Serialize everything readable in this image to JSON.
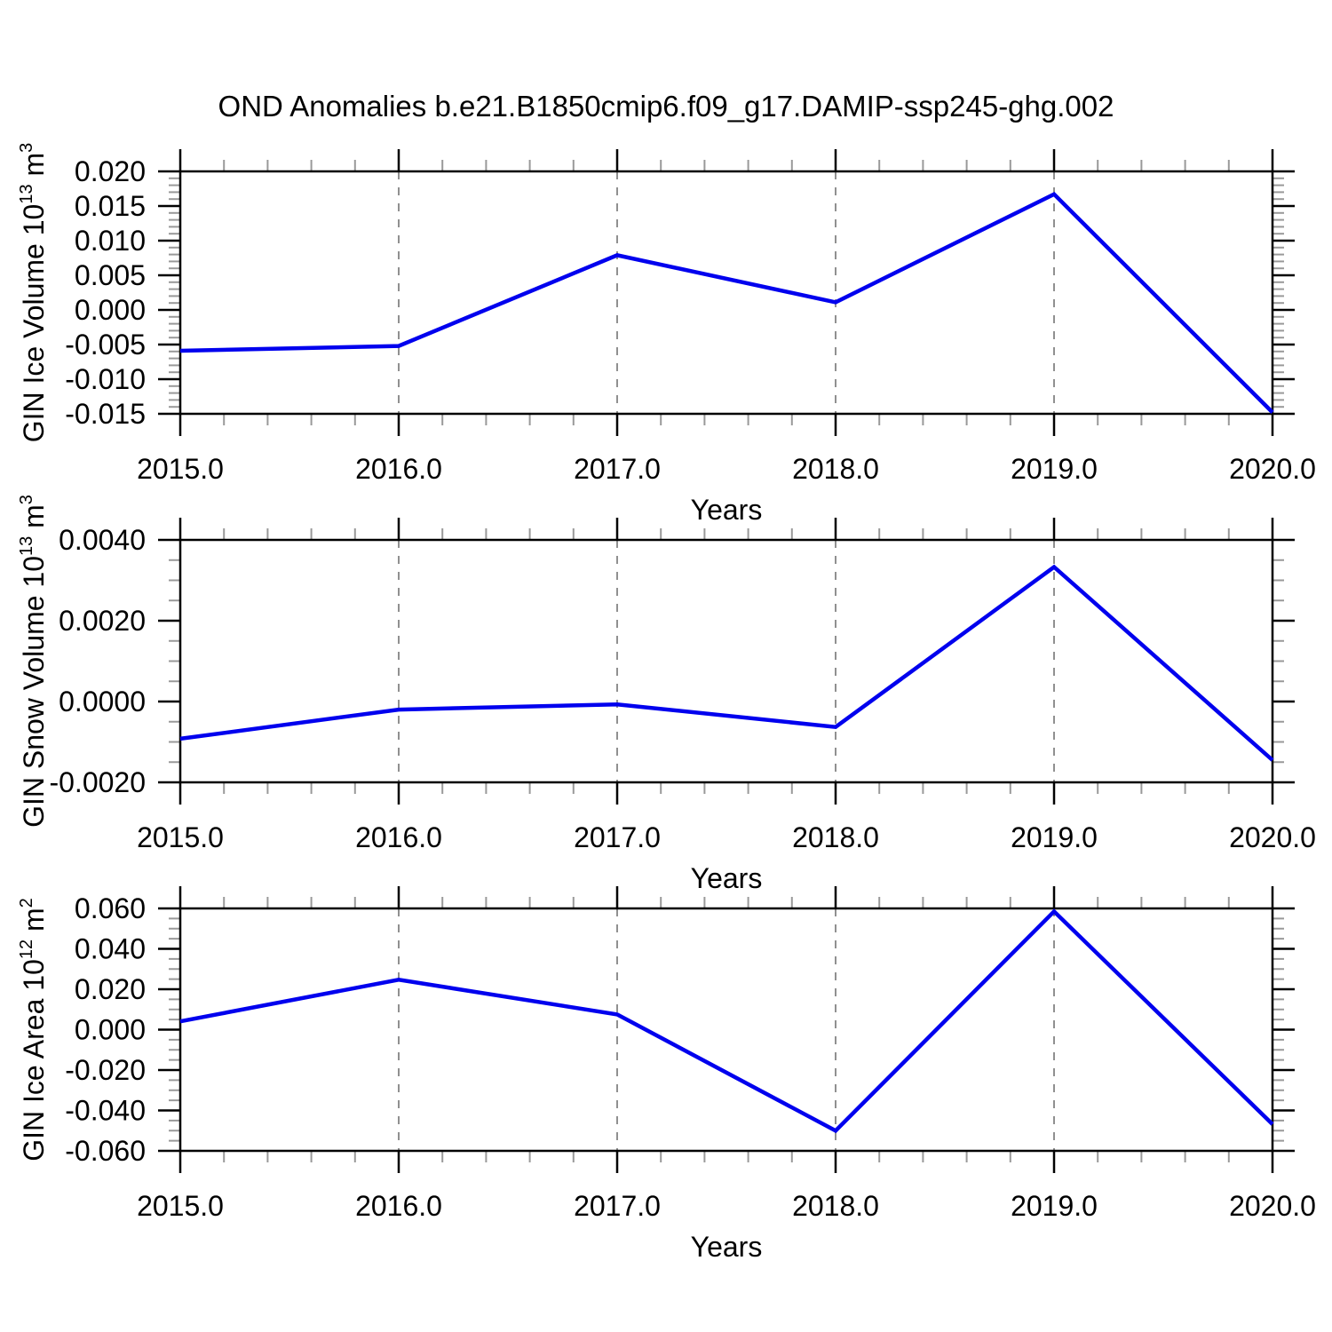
{
  "title": "OND Anomalies b.e21.B1850cmip6.f09_g17.DAMIP-ssp245-ghg.002",
  "colors": {
    "line": "#0000ee",
    "frame": "#000000",
    "major_tick": "#000000",
    "minor_tick": "#999999",
    "grid": "#909090",
    "text": "#000000",
    "background": "#ffffff"
  },
  "chart_data": [
    {
      "id": "gin-ice-volume",
      "type": "line",
      "ylabel": "GIN Ice Volume 10^13 m^3",
      "ylabel_parts": [
        {
          "text": "GIN Ice Volume 10"
        },
        {
          "text": "13",
          "sup": true
        },
        {
          "text": " m"
        },
        {
          "text": "3",
          "sup": true
        }
      ],
      "xlabel": "Years",
      "x": [
        2015,
        2016,
        2017,
        2018,
        2019,
        2020
      ],
      "y": [
        -0.0059,
        -0.0052,
        0.0079,
        0.0011,
        0.0167,
        -0.0148
      ],
      "xlim": [
        2015,
        2020
      ],
      "ylim": [
        -0.015,
        0.02
      ],
      "xtick_values": [
        2015,
        2016,
        2017,
        2018,
        2019,
        2020
      ],
      "xtick_labels": [
        "2015.0",
        "2016.0",
        "2017.0",
        "2018.0",
        "2019.0",
        "2020.0"
      ],
      "x_minor_step": 0.2,
      "ytick_values": [
        0.02,
        0.015,
        0.01,
        0.005,
        0.0,
        -0.005,
        -0.01,
        -0.015
      ],
      "ytick_labels": [
        "0.020",
        "0.015",
        "0.010",
        "0.005",
        "0.000",
        "-0.005",
        "-0.010",
        "-0.015"
      ],
      "y_minor_step": 0.001,
      "grid_x": [
        2016,
        2017,
        2018,
        2019
      ],
      "grid_style": "dashed",
      "legend": "none"
    },
    {
      "id": "gin-snow-volume",
      "type": "line",
      "ylabel": "GIN Snow Volume 10^13 m^3",
      "ylabel_parts": [
        {
          "text": "GIN Snow Volume 10"
        },
        {
          "text": "13",
          "sup": true
        },
        {
          "text": " m"
        },
        {
          "text": "3",
          "sup": true
        }
      ],
      "xlabel": "Years",
      "x": [
        2015,
        2016,
        2017,
        2018,
        2019,
        2020
      ],
      "y": [
        -0.00092,
        -0.0002,
        -7e-05,
        -0.00063,
        0.00333,
        -0.00145
      ],
      "xlim": [
        2015,
        2020
      ],
      "ylim": [
        -0.002,
        0.004
      ],
      "xtick_values": [
        2015,
        2016,
        2017,
        2018,
        2019,
        2020
      ],
      "xtick_labels": [
        "2015.0",
        "2016.0",
        "2017.0",
        "2018.0",
        "2019.0",
        "2020.0"
      ],
      "x_minor_step": 0.2,
      "ytick_values": [
        0.004,
        0.002,
        0.0,
        -0.002
      ],
      "ytick_labels": [
        "0.0040",
        "0.0020",
        "0.0000",
        "-0.0020"
      ],
      "y_minor_step": 0.0005,
      "grid_x": [
        2016,
        2017,
        2018,
        2019
      ],
      "grid_style": "dashed",
      "legend": "none"
    },
    {
      "id": "gin-ice-area",
      "type": "line",
      "ylabel": "GIN Ice Area 10^12 m^2",
      "ylabel_parts": [
        {
          "text": "GIN Ice Area 10"
        },
        {
          "text": "12",
          "sup": true
        },
        {
          "text": " m"
        },
        {
          "text": "2",
          "sup": true
        }
      ],
      "xlabel": "Years",
      "x": [
        2015,
        2016,
        2017,
        2018,
        2019,
        2020
      ],
      "y": [
        0.0041,
        0.0247,
        0.0075,
        -0.05,
        0.0585,
        -0.0468
      ],
      "xlim": [
        2015,
        2020
      ],
      "ylim": [
        -0.06,
        0.06
      ],
      "xtick_values": [
        2015,
        2016,
        2017,
        2018,
        2019,
        2020
      ],
      "xtick_labels": [
        "2015.0",
        "2016.0",
        "2017.0",
        "2018.0",
        "2019.0",
        "2020.0"
      ],
      "x_minor_step": 0.2,
      "ytick_values": [
        0.06,
        0.04,
        0.02,
        0.0,
        -0.02,
        -0.04,
        -0.06
      ],
      "ytick_labels": [
        "0.060",
        "0.040",
        "0.020",
        "0.000",
        "-0.020",
        "-0.040",
        "-0.060"
      ],
      "y_minor_step": 0.005,
      "grid_x": [
        2016,
        2017,
        2018,
        2019
      ],
      "grid_style": "dashed",
      "legend": "none"
    }
  ]
}
